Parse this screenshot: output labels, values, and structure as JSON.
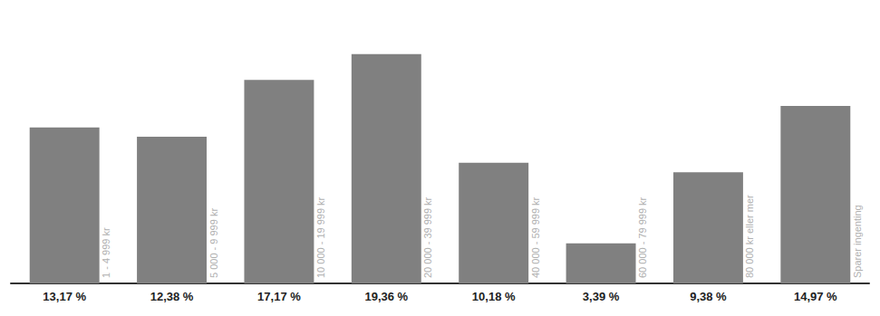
{
  "chart_data": {
    "type": "bar",
    "categories": [
      "1 - 4 999 kr",
      "5 000 - 9 999 kr",
      "10 000 - 19 999 kr",
      "20 000 - 39 999 kr",
      "40 000 - 59 999 kr",
      "60 000 - 79 999 kr",
      "80 000 kr eller mer",
      "Sparer ingenting"
    ],
    "values": [
      13.17,
      12.38,
      17.17,
      19.36,
      10.18,
      3.39,
      9.38,
      14.97
    ],
    "value_labels": [
      "13,17 %",
      "12,38 %",
      "17,17 %",
      "19,36 %",
      "10,18 %",
      "3,39 %",
      "9,38 %",
      "14,97 %"
    ],
    "data_labels": true,
    "color": "#808080",
    "ylim": [
      0,
      23
    ],
    "grid": false,
    "tick_labels": false
  }
}
